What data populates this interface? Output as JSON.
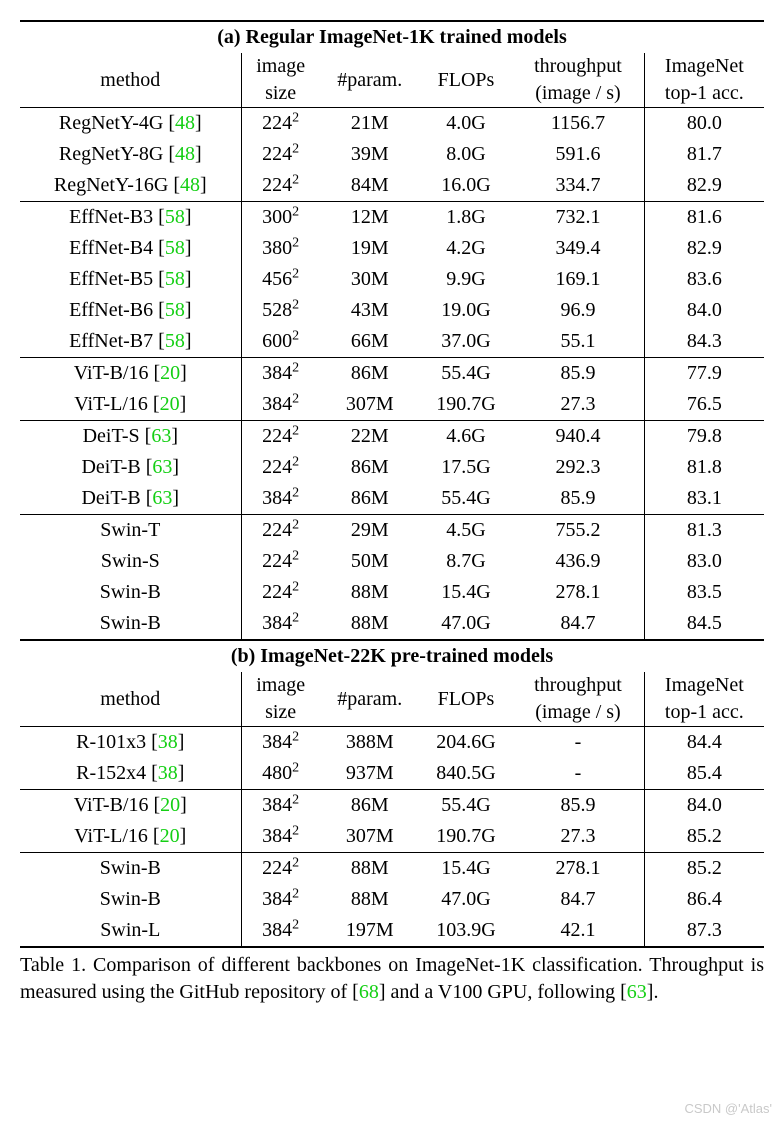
{
  "type": "table",
  "font_family": "Times New Roman",
  "font_size_pt": 20,
  "cite_color": "#14cf14",
  "line_color": "#000000",
  "background_color": "#ffffff",
  "columns": [
    "method",
    "image size",
    "#param.",
    "FLOPs",
    "throughput (image / s)",
    "ImageNet top-1 acc."
  ],
  "section_a": {
    "title": "(a) Regular ImageNet-1K trained models",
    "header": {
      "method": "method",
      "image_size_l1": "image",
      "image_size_l2": "size",
      "param": "#param.",
      "flops": "FLOPs",
      "throughput_l1": "throughput",
      "throughput_l2": "(image / s)",
      "acc_l1": "ImageNet",
      "acc_l2": "top-1 acc."
    },
    "groups": [
      {
        "rows": [
          {
            "method": "RegNetY-4G",
            "cite": "48",
            "img": "224",
            "sup": "2",
            "param": "21M",
            "flops": "4.0G",
            "tp": "1156.7",
            "acc": "80.0"
          },
          {
            "method": "RegNetY-8G",
            "cite": "48",
            "img": "224",
            "sup": "2",
            "param": "39M",
            "flops": "8.0G",
            "tp": "591.6",
            "acc": "81.7"
          },
          {
            "method": "RegNetY-16G",
            "cite": "48",
            "img": "224",
            "sup": "2",
            "param": "84M",
            "flops": "16.0G",
            "tp": "334.7",
            "acc": "82.9"
          }
        ]
      },
      {
        "rows": [
          {
            "method": "EffNet-B3",
            "cite": "58",
            "img": "300",
            "sup": "2",
            "param": "12M",
            "flops": "1.8G",
            "tp": "732.1",
            "acc": "81.6"
          },
          {
            "method": "EffNet-B4",
            "cite": "58",
            "img": "380",
            "sup": "2",
            "param": "19M",
            "flops": "4.2G",
            "tp": "349.4",
            "acc": "82.9"
          },
          {
            "method": "EffNet-B5",
            "cite": "58",
            "img": "456",
            "sup": "2",
            "param": "30M",
            "flops": "9.9G",
            "tp": "169.1",
            "acc": "83.6"
          },
          {
            "method": "EffNet-B6",
            "cite": "58",
            "img": "528",
            "sup": "2",
            "param": "43M",
            "flops": "19.0G",
            "tp": "96.9",
            "acc": "84.0"
          },
          {
            "method": "EffNet-B7",
            "cite": "58",
            "img": "600",
            "sup": "2",
            "param": "66M",
            "flops": "37.0G",
            "tp": "55.1",
            "acc": "84.3"
          }
        ]
      },
      {
        "rows": [
          {
            "method": "ViT-B/16",
            "cite": "20",
            "img": "384",
            "sup": "2",
            "param": "86M",
            "flops": "55.4G",
            "tp": "85.9",
            "acc": "77.9"
          },
          {
            "method": "ViT-L/16",
            "cite": "20",
            "img": "384",
            "sup": "2",
            "param": "307M",
            "flops": "190.7G",
            "tp": "27.3",
            "acc": "76.5"
          }
        ]
      },
      {
        "rows": [
          {
            "method": "DeiT-S",
            "cite": "63",
            "img": "224",
            "sup": "2",
            "param": "22M",
            "flops": "4.6G",
            "tp": "940.4",
            "acc": "79.8"
          },
          {
            "method": "DeiT-B",
            "cite": "63",
            "img": "224",
            "sup": "2",
            "param": "86M",
            "flops": "17.5G",
            "tp": "292.3",
            "acc": "81.8"
          },
          {
            "method": "DeiT-B",
            "cite": "63",
            "img": "384",
            "sup": "2",
            "param": "86M",
            "flops": "55.4G",
            "tp": "85.9",
            "acc": "83.1"
          }
        ]
      },
      {
        "rows": [
          {
            "method": "Swin-T",
            "cite": "",
            "img": "224",
            "sup": "2",
            "param": "29M",
            "flops": "4.5G",
            "tp": "755.2",
            "acc": "81.3"
          },
          {
            "method": "Swin-S",
            "cite": "",
            "img": "224",
            "sup": "2",
            "param": "50M",
            "flops": "8.7G",
            "tp": "436.9",
            "acc": "83.0"
          },
          {
            "method": "Swin-B",
            "cite": "",
            "img": "224",
            "sup": "2",
            "param": "88M",
            "flops": "15.4G",
            "tp": "278.1",
            "acc": "83.5"
          },
          {
            "method": "Swin-B",
            "cite": "",
            "img": "384",
            "sup": "2",
            "param": "88M",
            "flops": "47.0G",
            "tp": "84.7",
            "acc": "84.5"
          }
        ]
      }
    ]
  },
  "section_b": {
    "title": "(b) ImageNet-22K pre-trained models",
    "header": {
      "method": "method",
      "image_size_l1": "image",
      "image_size_l2": "size",
      "param": "#param.",
      "flops": "FLOPs",
      "throughput_l1": "throughput",
      "throughput_l2": "(image / s)",
      "acc_l1": "ImageNet",
      "acc_l2": "top-1 acc."
    },
    "groups": [
      {
        "rows": [
          {
            "method": "R-101x3",
            "cite": "38",
            "img": "384",
            "sup": "2",
            "param": "388M",
            "flops": "204.6G",
            "tp": "-",
            "acc": "84.4"
          },
          {
            "method": "R-152x4",
            "cite": "38",
            "img": "480",
            "sup": "2",
            "param": "937M",
            "flops": "840.5G",
            "tp": "-",
            "acc": "85.4"
          }
        ]
      },
      {
        "rows": [
          {
            "method": "ViT-B/16",
            "cite": "20",
            "img": "384",
            "sup": "2",
            "param": "86M",
            "flops": "55.4G",
            "tp": "85.9",
            "acc": "84.0"
          },
          {
            "method": "ViT-L/16",
            "cite": "20",
            "img": "384",
            "sup": "2",
            "param": "307M",
            "flops": "190.7G",
            "tp": "27.3",
            "acc": "85.2"
          }
        ]
      },
      {
        "rows": [
          {
            "method": "Swin-B",
            "cite": "",
            "img": "224",
            "sup": "2",
            "param": "88M",
            "flops": "15.4G",
            "tp": "278.1",
            "acc": "85.2"
          },
          {
            "method": "Swin-B",
            "cite": "",
            "img": "384",
            "sup": "2",
            "param": "88M",
            "flops": "47.0G",
            "tp": "84.7",
            "acc": "86.4"
          },
          {
            "method": "Swin-L",
            "cite": "",
            "img": "384",
            "sup": "2",
            "param": "197M",
            "flops": "103.9G",
            "tp": "42.1",
            "acc": "87.3"
          }
        ]
      }
    ]
  },
  "caption": {
    "prefix": "Table 1. Comparison of different backbones on ImageNet-1K classification.  Throughput is measured using the GitHub repository of [",
    "cite1": "68",
    "mid": "] and a V100 GPU, following [",
    "cite2": "63",
    "suffix": "]."
  },
  "watermark": "CSDN @'Atlas'"
}
